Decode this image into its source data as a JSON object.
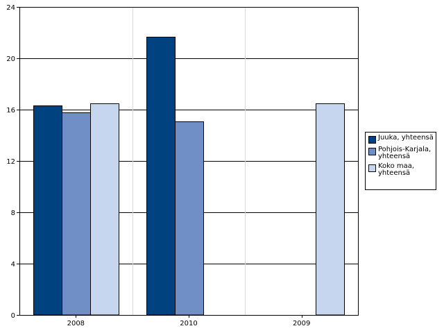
{
  "chart_data": {
    "type": "bar",
    "categories": [
      "2008",
      "2010",
      "2009"
    ],
    "series": [
      {
        "name": "Juuka, yhteensä",
        "color": "#00417f",
        "values": [
          16.3,
          21.7,
          null
        ]
      },
      {
        "name": "Pohjois-Karjala, yhteensä",
        "color": "#6f8fc6",
        "values": [
          15.8,
          15.1,
          null
        ]
      },
      {
        "name": "Koko maa, yhteensä",
        "color": "#c6d6ee",
        "values": [
          16.5,
          null,
          16.5
        ]
      }
    ],
    "title": "",
    "xlabel": "",
    "ylabel": "",
    "ylim": [
      0,
      24
    ],
    "yticks": [
      "0",
      "4",
      "8",
      "12",
      "16",
      "20",
      "24"
    ],
    "grid": true,
    "legend": "right"
  }
}
